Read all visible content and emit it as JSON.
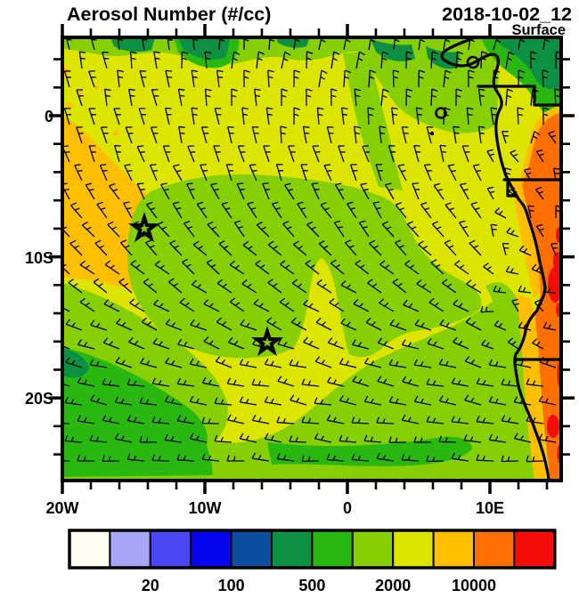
{
  "header": {
    "title": "Aerosol Number (#/cc)",
    "datetime": "2018-10-02_12",
    "level": "Surface"
  },
  "axes": {
    "x_labels": [
      "20W",
      "10W",
      "0",
      "10E"
    ],
    "y_labels": [
      "0",
      "10S",
      "20S"
    ]
  },
  "colorbar": {
    "tick_labels": [
      "20",
      "100",
      "500",
      "2000",
      "10000"
    ],
    "label_boundary_indices": [
      2,
      4,
      6,
      8,
      10
    ],
    "colors": [
      "#FFFFF2",
      "#A8A4F8",
      "#4A48F2",
      "#0404EE",
      "#0C4F9F",
      "#0B9044",
      "#28B810",
      "#86CF04",
      "#DCE400",
      "#FFBE00",
      "#FF6E00",
      "#F50C08"
    ]
  },
  "palette": {
    "c1": "#FFFFF2",
    "c2": "#A8A4F8",
    "c3": "#4A48F2",
    "c4": "#0404EE",
    "c5": "#0C4F9F",
    "c6": "#0B9044",
    "c7": "#28B810",
    "c8": "#86CF04",
    "c9": "#DCE400",
    "c10": "#FFBE00",
    "c11": "#FF6E00",
    "c12": "#F50C08",
    "ink": "#000000"
  },
  "chart_data": {
    "type": "heatmap",
    "title": "Aerosol Number (#/cc)",
    "time": "2018-10-02_12",
    "level": "Surface",
    "units": "#/cc",
    "projection": "cylindrical lat-lon, South Atlantic / West-Central Africa",
    "lon_range": [
      -20,
      15
    ],
    "lat_range": [
      -26,
      5.5
    ],
    "x_ticks": [
      "20W",
      "10W",
      "0",
      "10E"
    ],
    "y_ticks": [
      "0",
      "10S",
      "20S"
    ],
    "color_scale": {
      "boundaries": [
        10,
        20,
        50,
        100,
        200,
        500,
        1000,
        2000,
        5000,
        10000,
        20000
      ],
      "labeled_boundaries": [
        20,
        100,
        500,
        2000,
        10000
      ],
      "colors": [
        "#FFFFF2",
        "#A8A4F8",
        "#4A48F2",
        "#0404EE",
        "#0C4F9F",
        "#0B9044",
        "#28B810",
        "#86CF04",
        "#DCE400",
        "#FFBE00",
        "#FF6E00",
        "#F50C08"
      ]
    },
    "regions": [
      {
        "area": "open South Atlantic background",
        "value_range": "2000-5000 #/cc",
        "color": "#DCE400"
      },
      {
        "area": "diagonal band in northwest quadrant off West Africa",
        "value_range": "5000-10000 #/cc",
        "color": "#FFBE00"
      },
      {
        "area": "large central ocean blob (5W-13W, 4S-17S)",
        "value_range": "1000-2000 #/cc",
        "color": "#86CF04"
      },
      {
        "area": "southern ocean strip and southwest corner",
        "value_range": "1000-2000 #/cc with 500-1000 cores",
        "color": "#86CF04 / #28B810"
      },
      {
        "area": "Gulf of Guinea and northeast corner",
        "value_range": "200-1000 #/cc",
        "color": "#0B9044"
      },
      {
        "area": "African coastal land strip (Gabon to Namibia)",
        "value_range": "10000-20000 #/cc",
        "color": "#FF6E00"
      },
      {
        "area": "coastal hotspots along eastern edge",
        "value_range": ">20000 #/cc",
        "color": "#F50C08"
      }
    ],
    "markers": [
      {
        "name": "station-star",
        "lon": -14.3,
        "lat": -8.0,
        "px": [
          162,
          257
        ]
      },
      {
        "name": "station-star",
        "lon": -5.6,
        "lat": -16.0,
        "px": [
          300,
          385
        ]
      }
    ],
    "wind_barbs": {
      "present": true,
      "description": "surface wind barbs: southerly cross-equatorial flow in the north rotating through southeasterly trades to easterlies along the southern edge; lighter variable winds near the Angolan coast"
    }
  }
}
